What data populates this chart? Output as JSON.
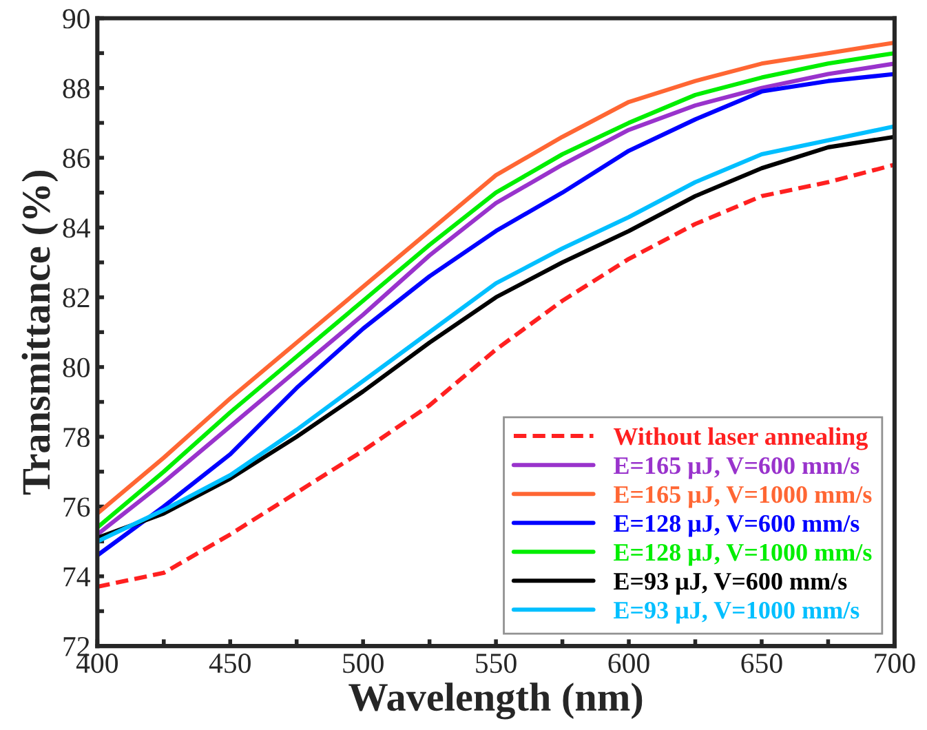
{
  "chart_data": {
    "type": "line",
    "xlabel": "Wavelength (nm)",
    "ylabel": "Transmittance (%)",
    "x": [
      400,
      425,
      450,
      475,
      500,
      525,
      550,
      575,
      600,
      625,
      650,
      675,
      700
    ],
    "xlim": [
      400,
      700
    ],
    "ylim": [
      72,
      90
    ],
    "xticks": [
      400,
      {
        "value": 425,
        "label": null
      },
      450,
      {
        "value": 475,
        "label": null
      },
      500,
      {
        "value": 525,
        "label": null
      },
      550,
      {
        "value": 575,
        "label": null
      },
      600,
      {
        "value": 625,
        "label": null
      },
      650,
      {
        "value": 675,
        "label": null
      },
      700
    ],
    "yticks": [
      72,
      {
        "value": 73,
        "label": null
      },
      74,
      {
        "value": 75,
        "label": null
      },
      76,
      {
        "value": 77,
        "label": null
      },
      78,
      {
        "value": 79,
        "label": null
      },
      80,
      {
        "value": 81,
        "label": null
      },
      82,
      {
        "value": 83,
        "label": null
      },
      84,
      {
        "value": 85,
        "label": null
      },
      86,
      {
        "value": 87,
        "label": null
      },
      88,
      {
        "value": 89,
        "label": null
      },
      90
    ],
    "grid": false,
    "legend": "bottom right",
    "marker": "none",
    "series": [
      {
        "name": "Without laser annealing",
        "color": "#ff2020",
        "line_style": "dashed",
        "values": [
          73.7,
          74.1,
          75.2,
          76.4,
          77.6,
          78.9,
          80.5,
          81.9,
          83.1,
          84.1,
          84.9,
          85.3,
          85.8
        ]
      },
      {
        "name": "E=165 μJ, V=600 mm/s",
        "color": "#9933cc",
        "line_style": "solid",
        "values": [
          75.2,
          76.7,
          78.3,
          79.9,
          81.5,
          83.2,
          84.7,
          85.8,
          86.8,
          87.5,
          88.0,
          88.4,
          88.7
        ]
      },
      {
        "name": "E=165 μJ, V=1000 mm/s",
        "color": "#ff6633",
        "line_style": "solid",
        "values": [
          75.8,
          77.4,
          79.1,
          80.7,
          82.3,
          83.9,
          85.5,
          86.6,
          87.6,
          88.2,
          88.7,
          89.0,
          89.3
        ]
      },
      {
        "name": "E=128 μJ, V=600 mm/s",
        "color": "#0000ff",
        "line_style": "solid",
        "values": [
          74.6,
          76.0,
          77.5,
          79.4,
          81.1,
          82.6,
          83.9,
          85.0,
          86.2,
          87.1,
          87.9,
          88.2,
          88.4
        ]
      },
      {
        "name": "E=128 μJ, V=1000 mm/s",
        "color": "#00ee00",
        "line_style": "solid",
        "values": [
          75.4,
          77.0,
          78.7,
          80.3,
          81.9,
          83.5,
          85.0,
          86.1,
          87.0,
          87.8,
          88.3,
          88.7,
          89.0
        ]
      },
      {
        "name": "E=93 μJ, V=600 mm/s",
        "color": "#000000",
        "line_style": "solid",
        "values": [
          75.1,
          75.8,
          76.8,
          78.0,
          79.3,
          80.7,
          82.0,
          83.0,
          83.9,
          84.9,
          85.7,
          86.3,
          86.6
        ]
      },
      {
        "name": "E=93 μJ, V=1000 mm/s",
        "color": "#00bfff",
        "line_style": "solid",
        "values": [
          75.0,
          75.9,
          76.9,
          78.2,
          79.6,
          81.0,
          82.4,
          83.4,
          84.3,
          85.3,
          86.1,
          86.5,
          86.9
        ]
      }
    ]
  }
}
